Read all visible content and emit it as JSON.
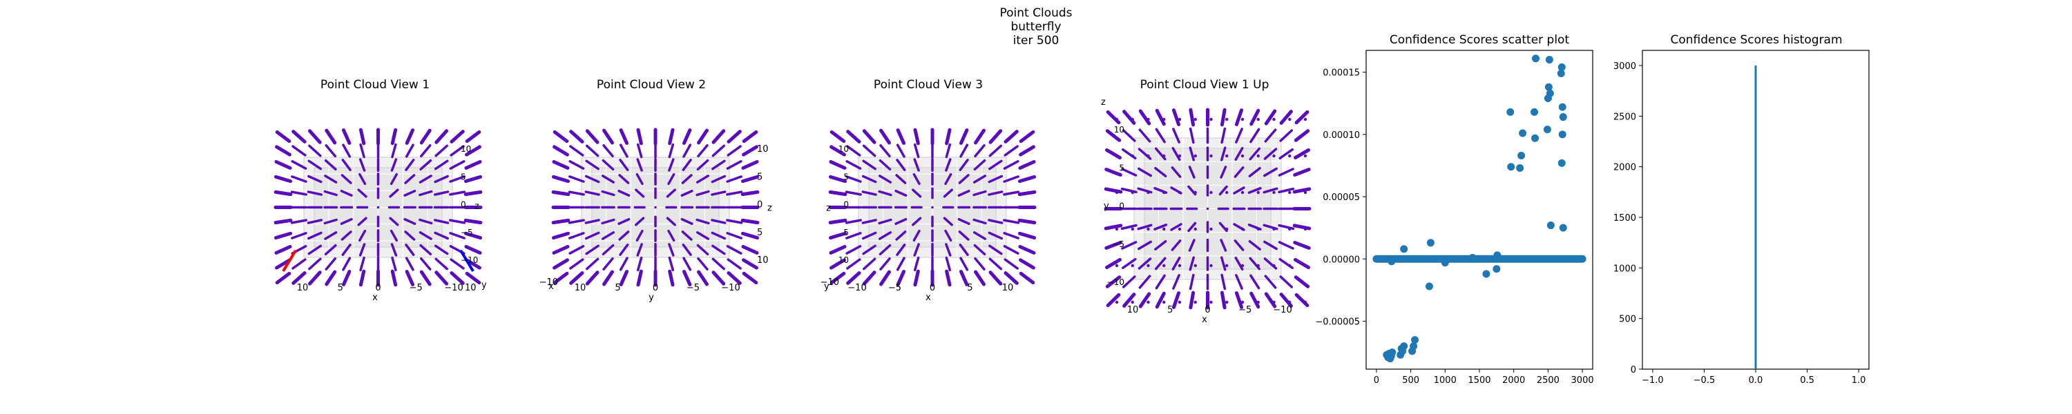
{
  "figure": {
    "suptitle": [
      "Point Clouds",
      "butterfly",
      "iter 500"
    ]
  },
  "chart_data": [
    {
      "type": "scatter",
      "title": "Point Cloud View 1",
      "projection": "3d",
      "axes": [
        "x",
        "z",
        "y"
      ],
      "xlabel": "x",
      "ylabel": "y",
      "zlabel": "z",
      "x_ticks": [
        "10",
        "5",
        "0",
        "−5",
        "−10"
      ],
      "y_ticks": [
        "10"
      ],
      "z_ticks": [
        "10",
        "5",
        "0",
        "−5",
        "−10"
      ],
      "marker_color": "#5a0dbd",
      "accent_colors": [
        "#ff0000",
        "#0000ff"
      ]
    },
    {
      "type": "scatter",
      "title": "Point Cloud View 2",
      "projection": "3d",
      "xlabel": "y",
      "ylabel": "x",
      "zlabel": "z",
      "x_ticks": [
        "10",
        "5",
        "0",
        "−5",
        "−10"
      ],
      "side_ticks": [
        "10",
        "5",
        "0",
        "5",
        "10"
      ],
      "corner_tick": "−10",
      "marker_color": "#5a0dbd"
    },
    {
      "type": "scatter",
      "title": "Point Cloud View 3",
      "projection": "3d",
      "xlabel": "x",
      "ylabel": "y",
      "zlabel": "z",
      "x_ticks": [
        "−10",
        "−5",
        "0",
        "5",
        "10"
      ],
      "side_ticks": [
        "10",
        "5",
        "0",
        "5",
        "10"
      ],
      "corner_tick": "−10",
      "marker_color": "#5a0dbd"
    },
    {
      "type": "scatter",
      "title": "Point Cloud View 1 Up",
      "projection": "3d",
      "xlabel": "x",
      "ylabel": "y",
      "zlabel": "z",
      "x_ticks": [
        "10",
        "5",
        "0",
        "−5",
        "−10"
      ],
      "side_ticks": [
        "10",
        "5",
        "0",
        "−5",
        "−10"
      ],
      "marker_color": "#5a0dbd"
    },
    {
      "type": "scatter",
      "title": "Confidence Scores scatter plot",
      "x_ticks": [
        0,
        500,
        1000,
        1500,
        2000,
        2500,
        3000
      ],
      "y_ticks": [
        -5e-05,
        0,
        5e-05,
        0.0001,
        0.00015
      ],
      "y_tick_labels": [
        "−0.00005",
        "0.00000",
        "0.00005",
        "0.00010",
        "0.00015"
      ],
      "xlim": [
        -150,
        3150
      ],
      "ylim": [
        -8.85e-05,
        0.0001675
      ],
      "marker_color": "#1f77b4",
      "baseline": {
        "x_from": 0,
        "x_to": 3000,
        "y": 0
      },
      "points": [
        [
          150,
          -7.7e-05
        ],
        [
          170,
          -7.9e-05
        ],
        [
          185,
          -7.6e-05
        ],
        [
          200,
          -8e-05
        ],
        [
          215,
          -7.8e-05
        ],
        [
          230,
          -7.5e-05
        ],
        [
          350,
          -7.7e-05
        ],
        [
          365,
          -7.2e-05
        ],
        [
          380,
          -7.4e-05
        ],
        [
          400,
          -7e-05
        ],
        [
          520,
          -7.4e-05
        ],
        [
          540,
          -7e-05
        ],
        [
          560,
          -6.5e-05
        ],
        [
          220,
          -2e-06
        ],
        [
          400,
          8e-06
        ],
        [
          770,
          -2.2e-05
        ],
        [
          790,
          1.3e-05
        ],
        [
          1000,
          -3e-06
        ],
        [
          1400,
          1e-06
        ],
        [
          1600,
          -1.2e-05
        ],
        [
          1750,
          -8e-06
        ],
        [
          1760,
          3e-06
        ],
        [
          1950,
          0.000118
        ],
        [
          1960,
          7.4e-05
        ],
        [
          2090,
          7.3e-05
        ],
        [
          2110,
          8.3e-05
        ],
        [
          2130,
          0.000101
        ],
        [
          2300,
          0.000118
        ],
        [
          2310,
          9.7e-05
        ],
        [
          2320,
          0.000161
        ],
        [
          2490,
          0.000104
        ],
        [
          2500,
          0.000129
        ],
        [
          2510,
          0.000138
        ],
        [
          2520,
          0.00016
        ],
        [
          2530,
          0.000133
        ],
        [
          2540,
          2.7e-05
        ],
        [
          2690,
          0.000149
        ],
        [
          2700,
          0.000154
        ],
        [
          2710,
          0.000122
        ],
        [
          2720,
          0.000114
        ],
        [
          2710,
          0.0001
        ],
        [
          2700,
          7.7e-05
        ],
        [
          2720,
          2.5e-05
        ]
      ]
    },
    {
      "type": "bar",
      "title": "Confidence Scores histogram",
      "x_ticks": [
        -1.0,
        -0.5,
        0.0,
        0.5,
        1.0
      ],
      "x_tick_labels": [
        "−1.0",
        "−0.5",
        "0.0",
        "0.5",
        "1.0"
      ],
      "y_ticks": [
        0,
        500,
        1000,
        1500,
        2000,
        2500,
        3000
      ],
      "xlim": [
        -1.1,
        1.1
      ],
      "ylim": [
        0,
        3150
      ],
      "bin_center": 0.0,
      "bin_value": 3000,
      "bar_color": "#1f77b4"
    }
  ]
}
